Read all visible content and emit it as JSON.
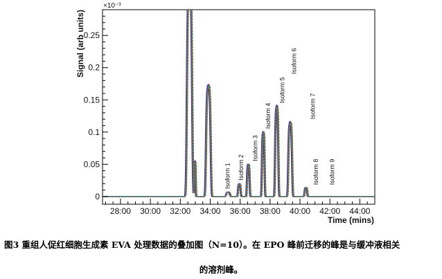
{
  "chart_data": {
    "type": "line",
    "xlabel": "Time (mins)",
    "ylabel": "Signal (arb units)",
    "y_exponent_label": "×10⁻³",
    "xlim": [
      26.8,
      45.0
    ],
    "ylim": [
      -0.012,
      0.29
    ],
    "x_ticks": [
      28,
      30,
      32,
      34,
      36,
      38,
      40,
      42,
      44
    ],
    "x_tick_labels": [
      "28:00",
      "30:00",
      "32:00",
      "34:00",
      "36:00",
      "38:00",
      "40:00",
      "42:00",
      "44:00"
    ],
    "y_ticks": [
      0,
      0.05,
      0.1,
      0.15,
      0.2,
      0.25
    ],
    "y_tick_labels": [
      "0",
      "0.05",
      "0.1",
      "0.15",
      "0.2",
      "0.25"
    ],
    "grid": false,
    "legend": "none",
    "series_count": 10,
    "series_colors": [
      "#1a1a1a",
      "#d62222",
      "#2a4bd6",
      "#7a2ad6",
      "#22a84a",
      "#d622c4",
      "#555555",
      "#e08a1a",
      "#1aa8c4",
      "#8b4513"
    ],
    "peaks": [
      {
        "center": 32.62,
        "height": 0.34,
        "width": 0.19
      },
      {
        "center": 32.98,
        "height": 0.055,
        "width": 0.06
      },
      {
        "center": 33.88,
        "height": 0.172,
        "width": 0.17
      },
      {
        "center": 35.2,
        "height": 0.007,
        "width": 0.14
      },
      {
        "center": 35.95,
        "height": 0.02,
        "width": 0.1
      },
      {
        "center": 36.55,
        "height": 0.05,
        "width": 0.1
      },
      {
        "center": 37.55,
        "height": 0.1,
        "width": 0.1
      },
      {
        "center": 38.45,
        "height": 0.14,
        "width": 0.12
      },
      {
        "center": 39.35,
        "height": 0.115,
        "width": 0.14
      },
      {
        "center": 40.4,
        "height": 0.014,
        "width": 0.1
      }
    ],
    "annotations": [
      {
        "text": "Isoform 1",
        "x": 35.3,
        "y": 0.012
      },
      {
        "text": "Isoform 2",
        "x": 36.2,
        "y": 0.025
      },
      {
        "text": "Isoform 3",
        "x": 37.15,
        "y": 0.055
      },
      {
        "text": "Isoform 4",
        "x": 38.0,
        "y": 0.105
      },
      {
        "text": "Isoform 5",
        "x": 38.95,
        "y": 0.145
      },
      {
        "text": "Isoform 6",
        "x": 39.75,
        "y": 0.19
      },
      {
        "text": "Isoform 7",
        "x": 41.0,
        "y": 0.12
      },
      {
        "text": "Isoform 8",
        "x": 41.2,
        "y": 0.018
      },
      {
        "text": "Isoform 9",
        "x": 42.3,
        "y": 0.018
      }
    ]
  },
  "caption": {
    "line1": "图3  重组人促红细胞生成素 EVA 处理数据的叠加图（N=10）。在 EPO 峰前迁移的峰是与缓冲液相关",
    "line2": "的溶剂峰。"
  }
}
